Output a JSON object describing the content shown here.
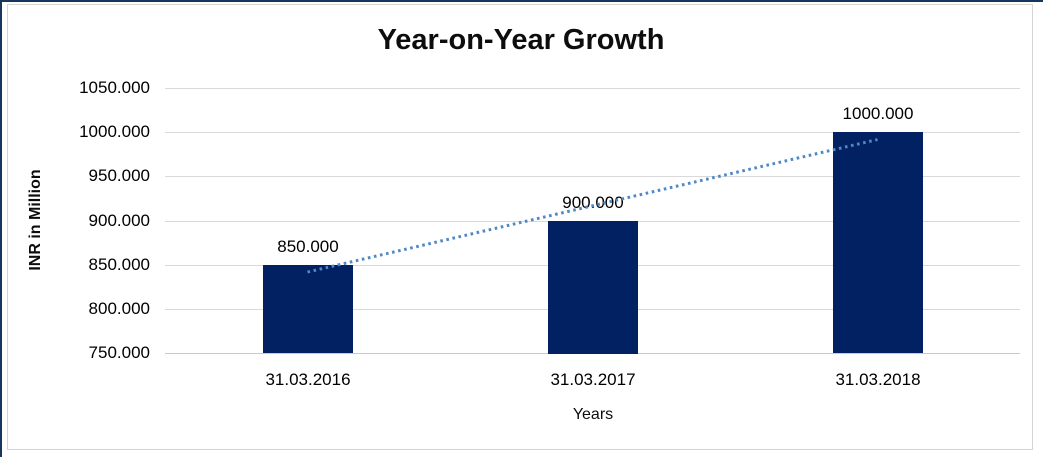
{
  "chart_data": {
    "type": "bar",
    "title": "Year-on-Year Growth",
    "xlabel": "Years",
    "ylabel": "INR in Million",
    "categories": [
      "31.03.2016",
      "31.03.2017",
      "31.03.2018"
    ],
    "values": [
      850,
      900,
      1000
    ],
    "data_labels": [
      "850.000",
      "900.000",
      "1000.000"
    ],
    "ylim": [
      750,
      1050
    ],
    "ytick_step": 50,
    "ytick_labels": [
      "750.000",
      "800.000",
      "850.000",
      "900.000",
      "950.000",
      "1000.000",
      "1050.000"
    ],
    "grid": true,
    "legend": "none",
    "trendline": {
      "type": "linear",
      "style": "dotted",
      "color": "#4f87c7",
      "endpoint_values": [
        841.667,
        991.667
      ]
    },
    "colors": {
      "bar": "#022163",
      "gridline": "#d9d9d9",
      "axisline": "#c9c9c9",
      "text": "#000000",
      "frame_edge": "#17365d",
      "chart_border": "#d4d4d4"
    }
  }
}
